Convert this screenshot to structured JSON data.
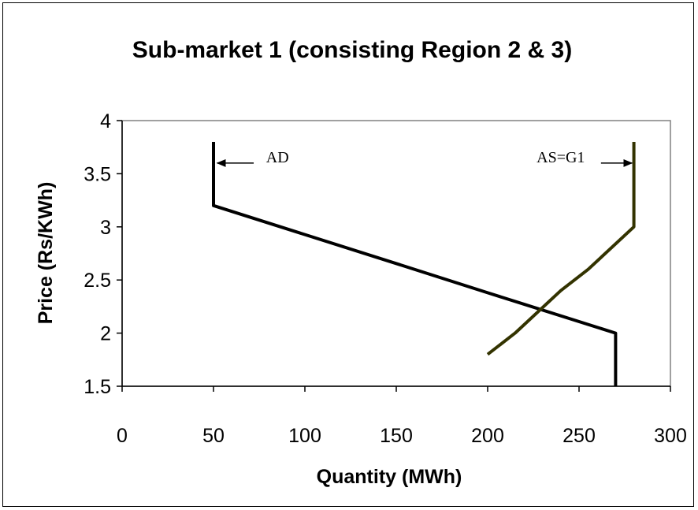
{
  "chart_data": {
    "type": "line",
    "title": "Sub-market 1 (consisting Region 2 & 3)",
    "xlabel": "Quantity (MWh)",
    "ylabel": "Price (Rs/KWh)",
    "xlim": [
      0,
      300
    ],
    "ylim": [
      1.5,
      4
    ],
    "xticks": [
      "0",
      "50",
      "100",
      "150",
      "200",
      "250",
      "300"
    ],
    "yticks": [
      "1.5",
      "2",
      "2.5",
      "3",
      "3.5",
      "4"
    ],
    "xtick_values": [
      0,
      50,
      100,
      150,
      200,
      250,
      300
    ],
    "ytick_values": [
      1.5,
      2,
      2.5,
      3,
      3.5,
      4
    ],
    "grid": false,
    "series": [
      {
        "name": "AD",
        "color": "#000000",
        "x": [
          50,
          50,
          160,
          200,
          270,
          270
        ],
        "y": [
          3.8,
          3.2,
          2.6,
          2.38,
          2.0,
          1.5
        ]
      },
      {
        "name": "AS=G1",
        "color": "#333300",
        "x": [
          200,
          215,
          240,
          255,
          280,
          280
        ],
        "y": [
          1.8,
          2.0,
          2.4,
          2.6,
          3.0,
          3.8
        ]
      }
    ],
    "annotations": [
      {
        "text": "AD",
        "x": 85,
        "y": 3.6,
        "arrow_from": [
          72,
          3.6
        ],
        "arrow_to": [
          52,
          3.6
        ]
      },
      {
        "text": "AS=G1",
        "x": 240,
        "y": 3.6,
        "arrow_from": [
          262,
          3.6
        ],
        "arrow_to": [
          279,
          3.6
        ]
      }
    ]
  }
}
